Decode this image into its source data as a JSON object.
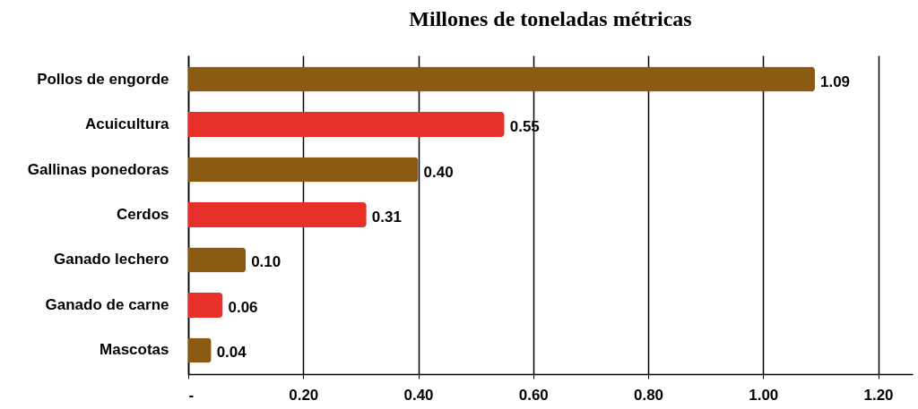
{
  "chart_data": {
    "type": "bar",
    "orientation": "horizontal",
    "title": "Millones de toneladas métricas",
    "categories": [
      "Pollos de engorde",
      "Acuicultura",
      "Gallinas ponedoras",
      "Cerdos",
      "Ganado lechero",
      "Ganado de carne",
      "Mascotas"
    ],
    "values": [
      1.09,
      0.55,
      0.4,
      0.31,
      0.1,
      0.06,
      0.04
    ],
    "value_labels": [
      "1.09",
      "0.55",
      "0.40",
      "0.31",
      "0.10",
      "0.06",
      "0.04"
    ],
    "colors": [
      "#8b5a12",
      "#e8302a",
      "#8b5a12",
      "#e8302a",
      "#8b5a12",
      "#e8302a",
      "#8b5a12"
    ],
    "xlim": [
      0,
      1.26
    ],
    "xticks": [
      {
        "value": 0,
        "label": "-"
      },
      {
        "value": 0.2,
        "label": "0.20"
      },
      {
        "value": 0.4,
        "label": "0.40"
      },
      {
        "value": 0.6,
        "label": "0.60"
      },
      {
        "value": 0.8,
        "label": "0.80"
      },
      {
        "value": 1.0,
        "label": "1.00"
      },
      {
        "value": 1.2,
        "label": "1.20"
      }
    ],
    "grid": "x"
  }
}
